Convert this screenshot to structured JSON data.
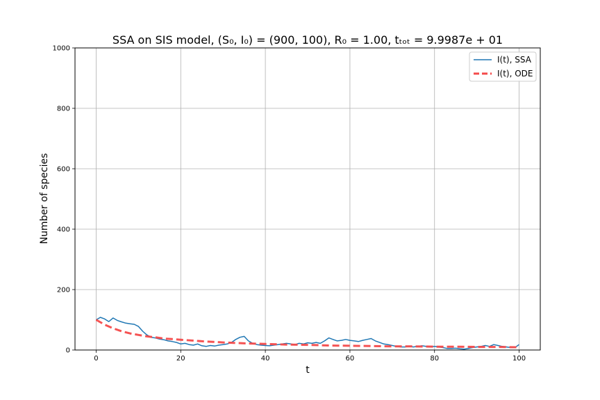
{
  "chart_data": {
    "type": "line",
    "title": "SSA on SIS model, (S₀, I₀) = (900, 100), R₀ = 1.00, tₜₒₜ = 9.9987e + 01",
    "xlabel": "t",
    "ylabel": "Number of species",
    "xlim": [
      -5,
      105
    ],
    "ylim": [
      0,
      1000
    ],
    "xticks": [
      0,
      20,
      40,
      60,
      80,
      100
    ],
    "yticks": [
      0,
      200,
      400,
      600,
      800,
      1000
    ],
    "grid": true,
    "legend_position": "top-right",
    "series": [
      {
        "name": "I(t), SSA",
        "style": "solid",
        "color": "#1f77b4",
        "x": [
          0,
          1,
          2,
          3,
          4,
          5,
          6,
          7,
          8,
          9,
          10,
          11,
          12,
          13,
          14,
          15,
          16,
          17,
          18,
          19,
          20,
          21,
          22,
          23,
          24,
          25,
          26,
          27,
          28,
          29,
          30,
          31,
          32,
          33,
          34,
          35,
          36,
          37,
          38,
          39,
          40,
          41,
          42,
          43,
          44,
          45,
          46,
          47,
          48,
          49,
          50,
          51,
          52,
          53,
          54,
          55,
          56,
          57,
          58,
          59,
          60,
          61,
          62,
          63,
          64,
          65,
          66,
          67,
          68,
          69,
          70,
          71,
          72,
          73,
          74,
          75,
          76,
          77,
          78,
          79,
          80,
          81,
          82,
          83,
          84,
          85,
          86,
          87,
          88,
          89,
          90,
          91,
          92,
          93,
          94,
          95,
          96,
          97,
          98,
          99,
          100
        ],
        "values": [
          100,
          108,
          103,
          94,
          106,
          98,
          93,
          89,
          87,
          85,
          78,
          62,
          50,
          42,
          40,
          36,
          34,
          30,
          28,
          25,
          20,
          22,
          18,
          16,
          20,
          14,
          12,
          15,
          13,
          16,
          18,
          20,
          25,
          35,
          42,
          45,
          30,
          22,
          18,
          16,
          15,
          14,
          16,
          18,
          20,
          22,
          20,
          18,
          22,
          20,
          24,
          22,
          25,
          22,
          30,
          40,
          35,
          30,
          32,
          35,
          32,
          30,
          28,
          32,
          35,
          38,
          30,
          25,
          20,
          18,
          15,
          12,
          10,
          10,
          12,
          10,
          12,
          14,
          12,
          10,
          12,
          10,
          8,
          5,
          5,
          6,
          4,
          3,
          5,
          8,
          10,
          12,
          15,
          12,
          18,
          15,
          12,
          10,
          8,
          8,
          18
        ]
      },
      {
        "name": "I(t), ODE",
        "style": "dashed",
        "color": "#f44a4a",
        "x": [
          0,
          2,
          4,
          6,
          8,
          10,
          12,
          14,
          16,
          18,
          20,
          25,
          30,
          35,
          40,
          45,
          50,
          55,
          60,
          65,
          70,
          75,
          80,
          85,
          90,
          95,
          100
        ],
        "values": [
          100,
          84,
          72,
          62,
          55,
          50,
          45,
          42,
          38,
          36,
          34,
          29,
          25,
          22,
          20,
          18,
          17,
          15,
          14,
          13,
          12,
          12,
          11,
          11,
          10,
          10,
          9
        ]
      }
    ]
  }
}
